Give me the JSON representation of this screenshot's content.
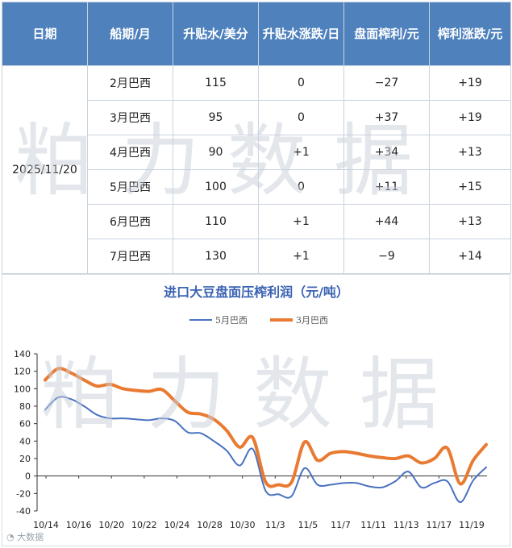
{
  "table": {
    "headers": [
      "日期",
      "船期/月",
      "升贴水/美分",
      "升贴水涨跌/日",
      "盘面榨利/元",
      "榨利涨跌/元"
    ],
    "date": "2025/11/20",
    "rows": [
      {
        "ship": "2月巴西",
        "premium": "115",
        "premium_chg": "0",
        "margin": "−27",
        "margin_chg": "+19",
        "margin_neg": true
      },
      {
        "ship": "3月巴西",
        "premium": "95",
        "premium_chg": "0",
        "margin": "+37",
        "margin_chg": "+19",
        "margin_neg": false
      },
      {
        "ship": "4月巴西",
        "premium": "90",
        "premium_chg": "+1",
        "margin": "+34",
        "margin_chg": "+13",
        "margin_neg": false
      },
      {
        "ship": "5月巴西",
        "premium": "100",
        "premium_chg": "0",
        "margin": "+11",
        "margin_chg": "+15",
        "margin_neg": false
      },
      {
        "ship": "6月巴西",
        "premium": "110",
        "premium_chg": "+1",
        "margin": "+44",
        "margin_chg": "+13",
        "margin_neg": false
      },
      {
        "ship": "7月巴西",
        "premium": "130",
        "premium_chg": "+1",
        "margin": "−9",
        "margin_chg": "+14",
        "margin_neg": true
      }
    ]
  },
  "watermark": "粕力数据",
  "footer": "大数据",
  "colors": {
    "header_bg": "#4f81bd",
    "series_may": "#4a72c0",
    "series_mar": "#e97a32",
    "negative": "#e0302c",
    "title": "#3b63b3"
  },
  "chart_data": {
    "type": "line",
    "title": "进口大豆盘面压榨利润（元/吨）",
    "ylim": [
      -40,
      140
    ],
    "yticks": [
      -40,
      -20,
      0,
      20,
      40,
      60,
      80,
      100,
      120,
      140
    ],
    "xtick_labels": [
      "10/14",
      "10/16",
      "10/20",
      "10/22",
      "10/24",
      "10/28",
      "10/30",
      "11/3",
      "11/5",
      "11/7",
      "11/11",
      "11/13",
      "11/17",
      "11/19"
    ],
    "legend_position": "top-center",
    "grid": false,
    "series": [
      {
        "name": "5月巴西",
        "values": [
          76,
          90,
          88,
          80,
          70,
          66,
          66,
          65,
          64,
          66,
          63,
          50,
          49,
          40,
          29,
          12,
          31,
          -17,
          -21,
          -23,
          9,
          -10,
          -10,
          -8,
          -8,
          -12,
          -13,
          -6,
          5,
          -13,
          -8,
          -6,
          -30,
          -5,
          10
        ]
      },
      {
        "name": "3月巴西",
        "values": [
          110,
          123,
          118,
          110,
          103,
          105,
          100,
          98,
          97,
          99,
          86,
          73,
          71,
          65,
          52,
          33,
          44,
          -7,
          -10,
          -7,
          39,
          18,
          26,
          28,
          26,
          23,
          21,
          20,
          23,
          15,
          20,
          32,
          -9,
          18,
          36
        ]
      }
    ]
  }
}
